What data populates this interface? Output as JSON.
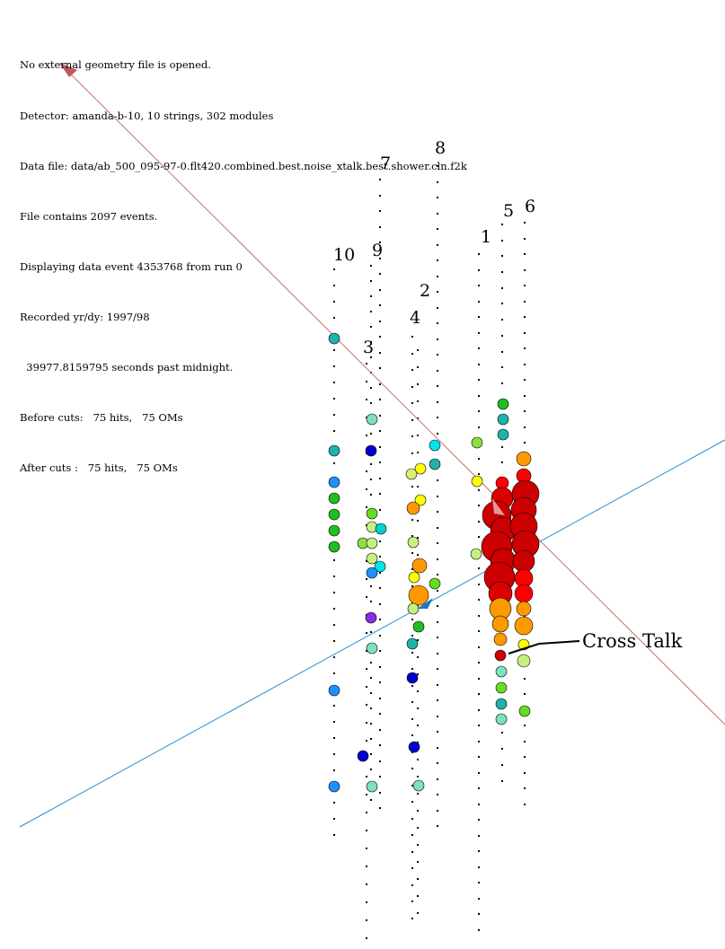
{
  "info_lines": [
    "No external geometry file is opened.",
    "Detector: amanda-b-10, 10 strings, 302 modules",
    "Data file: data/ab_500_095-97-0.flt420.combined.best.noise_xtalk.best.shower.cln.f2k",
    "File contains 2097 events.",
    "Displaying data event 4353768 from run 0",
    "Recorded yr/dy: 1997/98",
    "  39977.8159795 seconds past midnight.",
    "Before cuts:   75 hits,   75 OMs",
    "After cuts :   75 hits,   75 OMs"
  ],
  "string_labels": [
    "1",
    "2",
    "3",
    "4",
    "5",
    "6",
    "7",
    "8",
    "9",
    "10"
  ],
  "annotation": "Cross Talk",
  "colors": {
    "track_red": "#c87070",
    "track_blue": "#2a8ed0",
    "arrow_red": "#c05a5a",
    "arrow_blue": "#1e78c8",
    "om_dot": "#000000"
  }
}
